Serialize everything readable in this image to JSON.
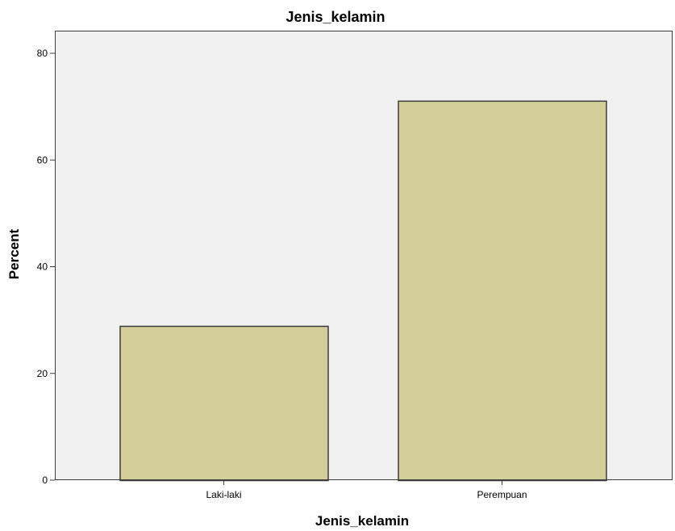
{
  "chart_data": {
    "type": "bar",
    "title": "Jenis_kelamin",
    "xlabel": "Jenis_kelamin",
    "ylabel": "Percent",
    "categories": [
      "Laki-laki",
      "Perempuan"
    ],
    "values": [
      28.9,
      71.1
    ],
    "ylim": [
      0,
      84
    ],
    "yticks": [
      0,
      20,
      40,
      60,
      80
    ],
    "grid": false,
    "colors": {
      "bar_fill": "#D3CE97",
      "bar_stroke": "#3C3C3C",
      "plot_bg": "#F0F0F0",
      "frame": "#3C3C3C"
    }
  }
}
